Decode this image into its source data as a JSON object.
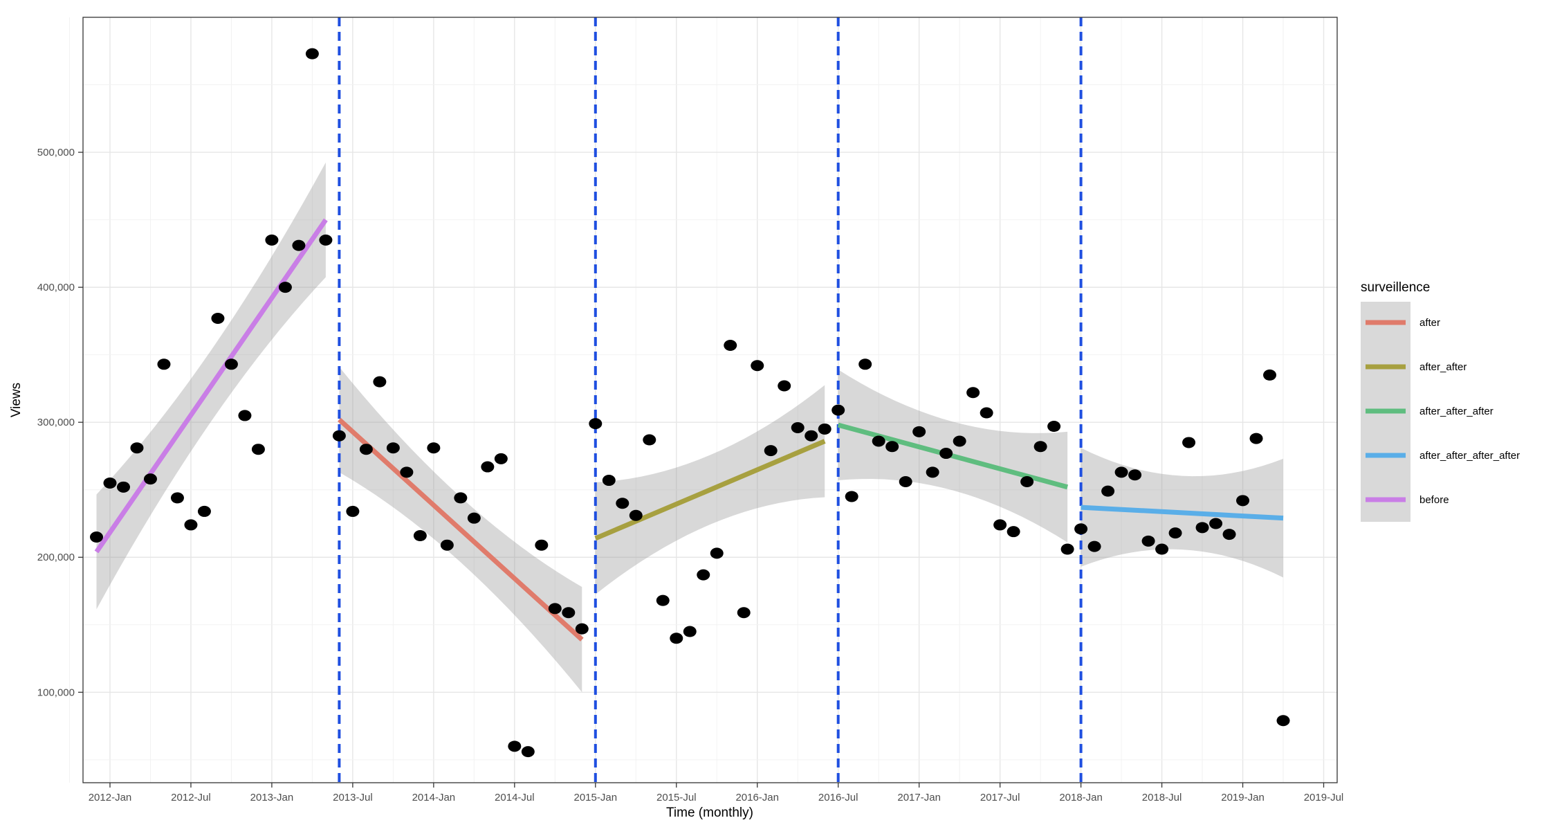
{
  "chart_data": {
    "type": "scatter",
    "title": "",
    "xlabel": "Time (monthly)",
    "ylabel": "Views",
    "xlim": [
      "2011-11",
      "2019-08"
    ],
    "ylim": [
      33000,
      600000
    ],
    "grid": true,
    "x_ticks": [
      "2012-Jan",
      "2012-Jul",
      "2013-Jan",
      "2013-Jul",
      "2014-Jan",
      "2014-Jul",
      "2015-Jan",
      "2015-Jul",
      "2016-Jan",
      "2016-Jul",
      "2017-Jan",
      "2017-Jul",
      "2018-Jan",
      "2018-Jul",
      "2019-Jan",
      "2019-Jul"
    ],
    "y_ticks": [
      "100,000",
      "200,000",
      "300,000",
      "400,000",
      "500,000"
    ],
    "legend": {
      "title": "surveillence",
      "position": "right"
    },
    "breakpoints": [
      "2013-06",
      "2015-01",
      "2016-07",
      "2018-01"
    ],
    "breakpoint_color": "#1f4fe0",
    "points": [
      {
        "x": "2011-12",
        "y": 215000
      },
      {
        "x": "2012-01",
        "y": 255000
      },
      {
        "x": "2012-02",
        "y": 252000
      },
      {
        "x": "2012-03",
        "y": 281000
      },
      {
        "x": "2012-04",
        "y": 258000
      },
      {
        "x": "2012-05",
        "y": 343000
      },
      {
        "x": "2012-06",
        "y": 244000
      },
      {
        "x": "2012-07",
        "y": 224000
      },
      {
        "x": "2012-08",
        "y": 234000
      },
      {
        "x": "2012-09",
        "y": 377000
      },
      {
        "x": "2012-10",
        "y": 343000
      },
      {
        "x": "2012-11",
        "y": 305000
      },
      {
        "x": "2012-12",
        "y": 280000
      },
      {
        "x": "2013-01",
        "y": 435000
      },
      {
        "x": "2013-02",
        "y": 400000
      },
      {
        "x": "2013-03",
        "y": 431000
      },
      {
        "x": "2013-04",
        "y": 573000
      },
      {
        "x": "2013-05",
        "y": 435000
      },
      {
        "x": "2013-06",
        "y": 290000
      },
      {
        "x": "2013-07",
        "y": 234000
      },
      {
        "x": "2013-08",
        "y": 280000
      },
      {
        "x": "2013-09",
        "y": 330000
      },
      {
        "x": "2013-10",
        "y": 281000
      },
      {
        "x": "2013-11",
        "y": 263000
      },
      {
        "x": "2013-12",
        "y": 216000
      },
      {
        "x": "2014-01",
        "y": 281000
      },
      {
        "x": "2014-02",
        "y": 209000
      },
      {
        "x": "2014-03",
        "y": 244000
      },
      {
        "x": "2014-04",
        "y": 229000
      },
      {
        "x": "2014-05",
        "y": 267000
      },
      {
        "x": "2014-06",
        "y": 273000
      },
      {
        "x": "2014-07",
        "y": 60000
      },
      {
        "x": "2014-08",
        "y": 56000
      },
      {
        "x": "2014-09",
        "y": 209000
      },
      {
        "x": "2014-10",
        "y": 162000
      },
      {
        "x": "2014-11",
        "y": 159000
      },
      {
        "x": "2014-12",
        "y": 147000
      },
      {
        "x": "2015-01",
        "y": 299000
      },
      {
        "x": "2015-02",
        "y": 257000
      },
      {
        "x": "2015-03",
        "y": 240000
      },
      {
        "x": "2015-04",
        "y": 231000
      },
      {
        "x": "2015-05",
        "y": 287000
      },
      {
        "x": "2015-06",
        "y": 168000
      },
      {
        "x": "2015-07",
        "y": 140000
      },
      {
        "x": "2015-08",
        "y": 145000
      },
      {
        "x": "2015-09",
        "y": 187000
      },
      {
        "x": "2015-10",
        "y": 203000
      },
      {
        "x": "2015-11",
        "y": 357000
      },
      {
        "x": "2015-12",
        "y": 159000
      },
      {
        "x": "2016-01",
        "y": 342000
      },
      {
        "x": "2016-02",
        "y": 279000
      },
      {
        "x": "2016-03",
        "y": 327000
      },
      {
        "x": "2016-04",
        "y": 296000
      },
      {
        "x": "2016-05",
        "y": 290000
      },
      {
        "x": "2016-06",
        "y": 295000
      },
      {
        "x": "2016-07",
        "y": 309000
      },
      {
        "x": "2016-08",
        "y": 245000
      },
      {
        "x": "2016-09",
        "y": 343000
      },
      {
        "x": "2016-10",
        "y": 286000
      },
      {
        "x": "2016-11",
        "y": 282000
      },
      {
        "x": "2016-12",
        "y": 256000
      },
      {
        "x": "2017-01",
        "y": 293000
      },
      {
        "x": "2017-02",
        "y": 263000
      },
      {
        "x": "2017-03",
        "y": 277000
      },
      {
        "x": "2017-04",
        "y": 286000
      },
      {
        "x": "2017-05",
        "y": 322000
      },
      {
        "x": "2017-06",
        "y": 307000
      },
      {
        "x": "2017-07",
        "y": 224000
      },
      {
        "x": "2017-08",
        "y": 219000
      },
      {
        "x": "2017-09",
        "y": 256000
      },
      {
        "x": "2017-10",
        "y": 282000
      },
      {
        "x": "2017-11",
        "y": 297000
      },
      {
        "x": "2017-12",
        "y": 206000
      },
      {
        "x": "2018-01",
        "y": 221000
      },
      {
        "x": "2018-02",
        "y": 208000
      },
      {
        "x": "2018-03",
        "y": 249000
      },
      {
        "x": "2018-04",
        "y": 263000
      },
      {
        "x": "2018-05",
        "y": 261000
      },
      {
        "x": "2018-06",
        "y": 212000
      },
      {
        "x": "2018-07",
        "y": 206000
      },
      {
        "x": "2018-08",
        "y": 218000
      },
      {
        "x": "2018-09",
        "y": 285000
      },
      {
        "x": "2018-10",
        "y": 222000
      },
      {
        "x": "2018-11",
        "y": 225000
      },
      {
        "x": "2018-12",
        "y": 217000
      },
      {
        "x": "2019-01",
        "y": 242000
      },
      {
        "x": "2019-02",
        "y": 288000
      },
      {
        "x": "2019-03",
        "y": 335000
      },
      {
        "x": "2019-04",
        "y": 79000
      }
    ],
    "series": [
      {
        "name": "after",
        "color": "#e07b6b",
        "x": [
          "2013-06",
          "2014-12"
        ],
        "y": [
          302000,
          139000
        ],
        "band_upper": [
          340000,
          178000
        ],
        "band_lower": [
          262000,
          100000
        ]
      },
      {
        "name": "after_after",
        "color": "#a7a040",
        "x": [
          "2015-01",
          "2016-06"
        ],
        "y": [
          214000,
          286000
        ],
        "band_upper": [
          256000,
          326000
        ],
        "band_lower": [
          173000,
          246000
        ]
      },
      {
        "name": "after_after_after",
        "color": "#5fbd7f",
        "x": [
          "2016-07",
          "2017-12"
        ],
        "y": [
          298000,
          252000
        ],
        "band_upper": [
          339000,
          293000
        ],
        "band_lower": [
          257000,
          211000
        ]
      },
      {
        "name": "after_after_after_after",
        "color": "#5aaee8",
        "x": [
          "2018-01",
          "2019-04"
        ],
        "y": [
          237000,
          229000
        ],
        "band_upper": [
          281000,
          273000
        ],
        "band_lower": [
          193000,
          185000
        ]
      },
      {
        "name": "before",
        "color": "#c97ee6",
        "x": [
          "2011-12",
          "2013-05"
        ],
        "y": [
          204000,
          450000
        ],
        "band_upper": [
          247000,
          490000
        ],
        "band_lower": [
          162000,
          410000
        ]
      }
    ],
    "legend_order": [
      "after",
      "after_after",
      "after_after_after",
      "after_after_after_after",
      "before"
    ]
  }
}
